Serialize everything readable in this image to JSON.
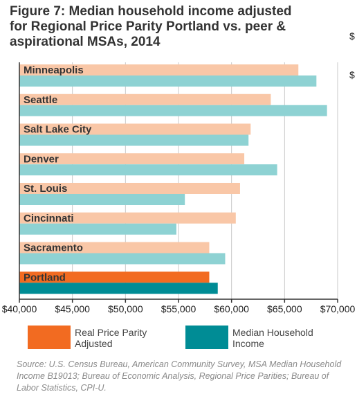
{
  "title": "Figure 7: Median household income adjusted for Regional Price Parity Portland vs. peer & aspirational MSAs, 2014",
  "edge_fragments": [
    "$",
    "$"
  ],
  "colors": {
    "real_peer": "#f9c7a7",
    "median_peer": "#8ed2d3",
    "real_highlight": "#f26b21",
    "median_highlight": "#008c95",
    "grid": "#c8c8c8",
    "axis": "#333333"
  },
  "legend": [
    {
      "label": "Real Price Parity Adjusted",
      "color": "#f26b21"
    },
    {
      "label": "Median Household Income",
      "color": "#008c95"
    }
  ],
  "source": "Source: U.S. Census Bureau, American Community Survey, MSA Median Household Income B19013; Bureau of Economic Analysis, Regional Price Parities; Bureau of Labor Statistics, CPI-U.",
  "chart_data": {
    "type": "bar",
    "orientation": "horizontal",
    "title": "Figure 7: Median household income adjusted for Regional Price Parity Portland vs. peer & aspirational MSAs, 2014",
    "categories": [
      "Minneapolis",
      "Seattle",
      "Salt Lake City",
      "Denver",
      "St. Louis",
      "Cincinnati",
      "Sacramento",
      "Portland"
    ],
    "highlight_category": "Portland",
    "series": [
      {
        "name": "Real Price Parity Adjusted",
        "values": [
          66300,
          63700,
          61800,
          61200,
          60800,
          60400,
          57900,
          57900
        ]
      },
      {
        "name": "Median Household Income",
        "values": [
          68000,
          69000,
          61600,
          64300,
          55600,
          54800,
          59400,
          58700
        ]
      }
    ],
    "xlim": [
      40000,
      70000
    ],
    "xticks": [
      40000,
      45000,
      50000,
      55000,
      60000,
      65000,
      70000
    ],
    "xtick_labels": [
      "$40,000",
      "$45,000",
      "$50,000",
      "$55,000",
      "$60,000",
      "$65,000",
      "$70,000"
    ],
    "grid": "vertical",
    "legend_position": "bottom"
  }
}
